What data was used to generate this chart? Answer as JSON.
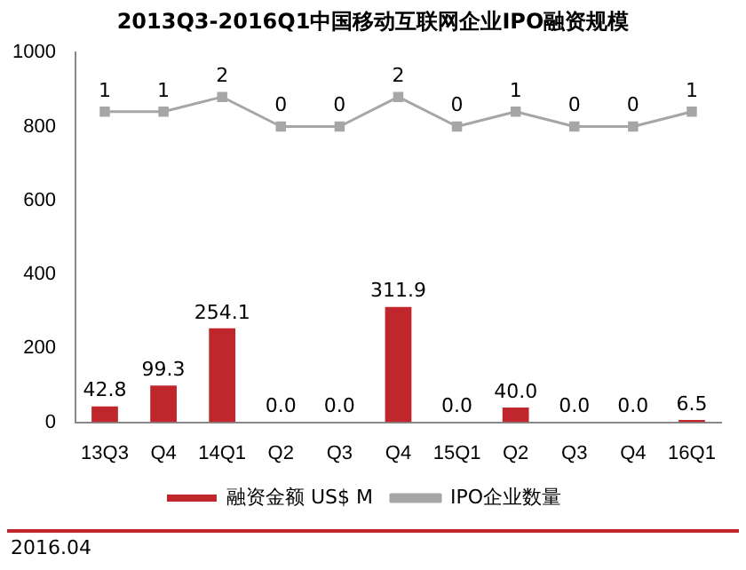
{
  "chart_data": {
    "type": "bar",
    "title": "2013Q3-2016Q1中国移动互联网企业IPO融资规模",
    "categories": [
      "13Q3",
      "Q4",
      "14Q1",
      "Q2",
      "Q3",
      "Q4",
      "15Q1",
      "Q2",
      "Q3",
      "Q4",
      "16Q1"
    ],
    "series": [
      {
        "name": "融资金额 US$ M",
        "color": "#c0272d",
        "values": [
          42.8,
          99.3,
          254.1,
          0,
          0,
          311.9,
          0,
          40,
          0,
          0,
          6.5
        ],
        "value_labels": [
          "42.8",
          "99.3",
          "254.1",
          "0.0",
          "0.0",
          "311.9",
          "0.0",
          "40.0",
          "0.0",
          "0.0",
          "6.5"
        ]
      },
      {
        "name": "IPO企业数量",
        "type": "line",
        "axis": "y2",
        "color": "#a6a6a6",
        "marker": "square",
        "values": [
          1,
          1,
          2,
          0,
          0,
          2,
          0,
          1,
          0,
          0,
          1
        ],
        "value_labels": [
          "1",
          "1",
          "2",
          "0",
          "0",
          "2",
          "0",
          "1",
          "0",
          "0",
          "1"
        ]
      }
    ],
    "ylim": [
      0,
      1000
    ],
    "yticks": [
      0,
      200,
      400,
      600,
      800,
      1000
    ],
    "y2lim": [
      -20,
      5
    ],
    "tick_labels": "x y",
    "grid": false,
    "legend": "bottom",
    "annotations": [
      "2016.04"
    ]
  }
}
